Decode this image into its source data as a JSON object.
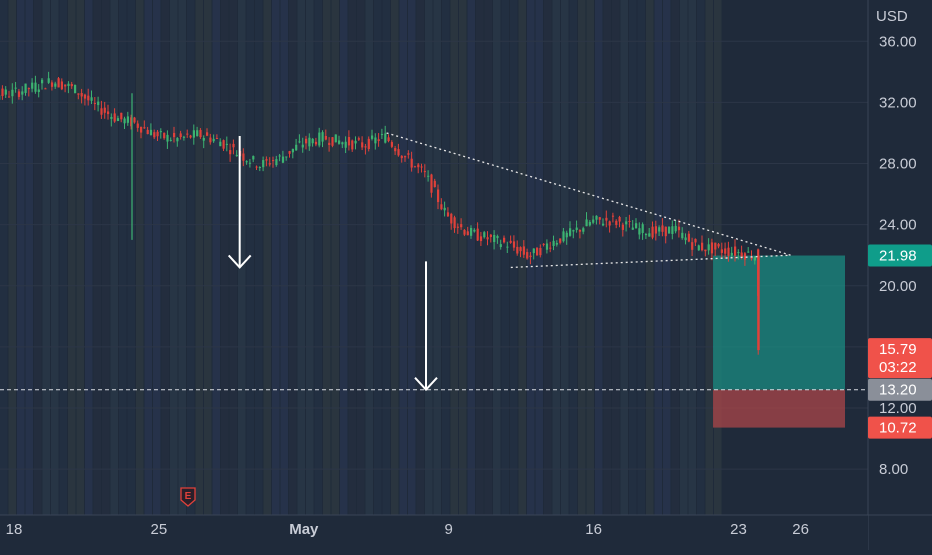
{
  "chart_data": {
    "type": "candlestick",
    "currency": "USD",
    "y_ticks": [
      8,
      12,
      16,
      20,
      24,
      28,
      32,
      36
    ],
    "y_tick_labels": [
      "8.00",
      "12.00",
      "16.00",
      "20.00",
      "24.00",
      "28.00",
      "32.00",
      "36.00"
    ],
    "ylim": [
      5.0,
      38.7
    ],
    "x_ticks": [
      {
        "label": "18",
        "date": "2022-04-18",
        "bold": false
      },
      {
        "label": "25",
        "date": "2022-04-25",
        "bold": false
      },
      {
        "label": "May",
        "date": "2022-05-02",
        "bold": true
      },
      {
        "label": "9",
        "date": "2022-05-09",
        "bold": false
      },
      {
        "label": "16",
        "date": "2022-05-16",
        "bold": false
      },
      {
        "label": "23",
        "date": "2022-05-23",
        "bold": false
      },
      {
        "label": "26",
        "date": "2022-05-26",
        "bold": false
      }
    ],
    "price_series": [
      [
        "2022-04-15",
        33.8
      ],
      [
        "2022-04-16",
        33.0
      ],
      [
        "2022-04-17",
        32.5
      ],
      [
        "2022-04-18",
        32.6
      ],
      [
        "2022-04-19",
        33.0
      ],
      [
        "2022-04-20",
        33.4
      ],
      [
        "2022-04-21",
        32.9
      ],
      [
        "2022-04-22",
        31.8
      ],
      [
        "2022-04-23",
        31.0
      ],
      [
        "2022-04-24",
        30.6
      ],
      [
        "2022-04-25",
        29.8
      ],
      [
        "2022-04-26",
        29.6
      ],
      [
        "2022-04-27",
        29.9
      ],
      [
        "2022-04-28",
        29.5
      ],
      [
        "2022-04-29",
        28.6
      ],
      [
        "2022-04-30",
        27.9
      ],
      [
        "2022-05-01",
        28.4
      ],
      [
        "2022-05-02",
        29.3
      ],
      [
        "2022-05-03",
        29.7
      ],
      [
        "2022-05-04",
        29.4
      ],
      [
        "2022-05-05",
        29.2
      ],
      [
        "2022-05-06",
        29.8
      ],
      [
        "2022-05-07",
        28.4
      ],
      [
        "2022-05-08",
        27.2
      ],
      [
        "2022-05-09",
        24.6
      ],
      [
        "2022-05-10",
        23.5
      ],
      [
        "2022-05-11",
        23.1
      ],
      [
        "2022-05-12",
        22.7
      ],
      [
        "2022-05-13",
        21.9
      ],
      [
        "2022-05-14",
        22.8
      ],
      [
        "2022-05-15",
        23.4
      ],
      [
        "2022-05-16",
        24.2
      ],
      [
        "2022-05-17",
        24.3
      ],
      [
        "2022-05-18",
        23.8
      ],
      [
        "2022-05-19",
        23.5
      ],
      [
        "2022-05-20",
        23.7
      ],
      [
        "2022-05-21",
        22.6
      ],
      [
        "2022-05-22",
        22.4
      ],
      [
        "2022-05-23",
        22.2
      ],
      [
        "2022-05-24",
        21.98
      ],
      [
        "2022-05-24",
        15.79
      ]
    ],
    "trendline_upper": {
      "start": [
        "2022-05-06",
        30.0
      ],
      "end": [
        "2022-05-26",
        22.0
      ]
    },
    "trendline_lower": {
      "start": [
        "2022-05-12",
        21.2
      ],
      "end": [
        "2022-05-26",
        22.0
      ]
    },
    "horizontal_line": 13.2,
    "arrows": [
      {
        "date": "2022-04-29",
        "from": 29.8,
        "to": 21.2
      },
      {
        "date": "2022-05-08",
        "from": 21.6,
        "to": 13.2
      }
    ],
    "position": {
      "entry": 21.98,
      "target": 13.2,
      "stop": 10.72,
      "start_date": "2022-05-24",
      "end_date": "2022-05-28"
    },
    "price_labels": [
      {
        "value": 21.98,
        "text": "21.98",
        "color": "#0f9d8a"
      },
      {
        "value": 15.79,
        "text": "15.79",
        "sub": "03:22",
        "color": "#f0524a"
      },
      {
        "value": 13.2,
        "text": "13.20",
        "color": "#8a8f99"
      },
      {
        "value": 10.72,
        "text": "10.72",
        "color": "#f0524a"
      }
    ],
    "earnings_marker": {
      "label": "E",
      "date": "2022-04-28"
    }
  }
}
